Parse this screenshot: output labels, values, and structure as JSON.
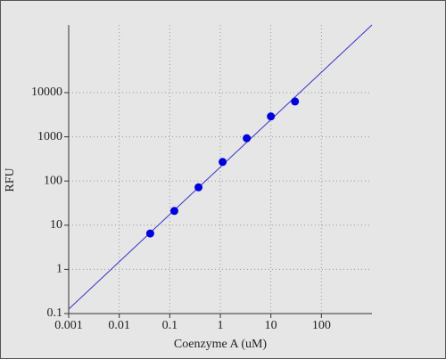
{
  "chart_data": {
    "type": "scatter",
    "xlabel": "Coenzyme A (uM)",
    "ylabel": "RFU",
    "log_x": true,
    "log_y": true,
    "grid": true,
    "xlim": [
      0.001,
      1000
    ],
    "ylim": [
      0.1,
      340000
    ],
    "xticks": [
      0.001,
      0.01,
      0.1,
      1,
      10,
      100
    ],
    "yticks": [
      0.1,
      1,
      10,
      100,
      1000,
      10000
    ],
    "series": [
      {
        "color": "#0000dd",
        "x": [
          0.041,
          0.123,
          0.37,
          1.11,
          3.33,
          10,
          30
        ],
        "values": [
          6.5,
          21,
          72,
          270,
          930,
          2900,
          6300
        ]
      }
    ],
    "fit": {
      "color": "#3333cc",
      "x": [
        0.001,
        1000
      ],
      "values": [
        0.126,
        340000
      ]
    }
  }
}
